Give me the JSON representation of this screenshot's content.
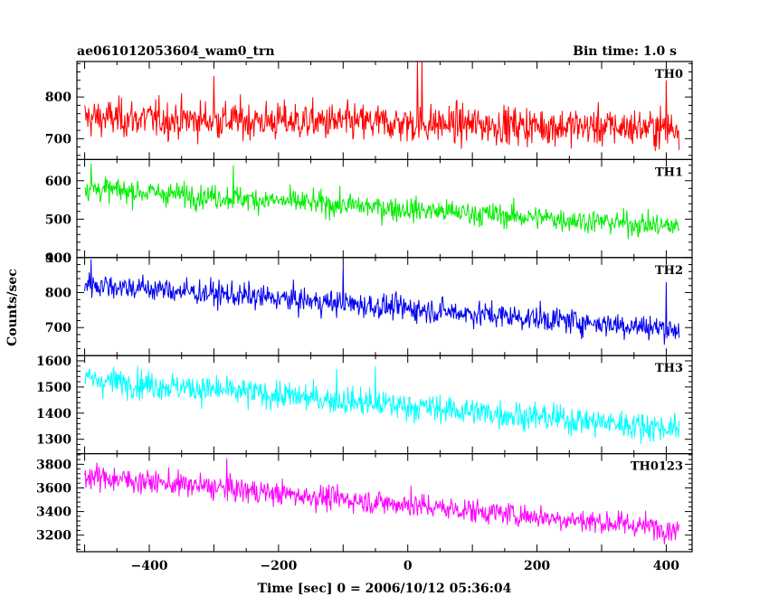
{
  "header": {
    "title": "ae061012053604_wam0_trn",
    "bin_time": "Bin time: 1.0 s"
  },
  "chart_data": {
    "type": "line",
    "xlabel": "Time [sec] 0 = 2006/10/12 05:36:04",
    "ylabel": "Counts/sec",
    "xlim": [
      -512,
      440
    ],
    "xticks": [
      -400,
      -200,
      0,
      200,
      400
    ],
    "x_start": -500,
    "x_end": 420,
    "x_step": 1,
    "panels": [
      {
        "name": "TH0",
        "color": "#ff0000",
        "ylim": [
          650,
          885
        ],
        "yticks": [
          700,
          800
        ],
        "trend_start": 750,
        "trend_end": 725,
        "scatter": 38,
        "spikes": [
          {
            "x": 15,
            "y": 885
          },
          {
            "x": 22,
            "y": 885
          },
          {
            "x": -300,
            "y": 850
          },
          {
            "x": 400,
            "y": 840
          }
        ]
      },
      {
        "name": "TH1",
        "color": "#00ee00",
        "ylim": [
          400,
          655
        ],
        "yticks": [
          400,
          500,
          600
        ],
        "trend_start": 580,
        "trend_end": 480,
        "scatter": 26,
        "spikes": [
          {
            "x": -270,
            "y": 640
          },
          {
            "x": -490,
            "y": 645
          }
        ]
      },
      {
        "name": "TH2",
        "color": "#0000ee",
        "ylim": [
          620,
          900
        ],
        "yticks": [
          700,
          800,
          900
        ],
        "trend_start": 825,
        "trend_end": 695,
        "scatter": 30,
        "spikes": [
          {
            "x": -100,
            "y": 880
          },
          {
            "x": -490,
            "y": 895
          },
          {
            "x": 400,
            "y": 830
          }
        ]
      },
      {
        "name": "TH3",
        "color": "#00ffff",
        "ylim": [
          1245,
          1620
        ],
        "yticks": [
          1300,
          1400,
          1500,
          1600
        ],
        "trend_start": 1530,
        "trend_end": 1340,
        "scatter": 45,
        "spikes": [
          {
            "x": -50,
            "y": 1580
          },
          {
            "x": -110,
            "y": 1570
          }
        ]
      },
      {
        "name": "TH0123",
        "color": "#ff00ff",
        "ylim": [
          3060,
          3890
        ],
        "yticks": [
          3200,
          3400,
          3600,
          3800
        ],
        "trend_start": 3700,
        "trend_end": 3250,
        "scatter": 85,
        "spikes": [
          {
            "x": 5,
            "y": 3620
          },
          {
            "x": -280,
            "y": 3850
          }
        ]
      }
    ]
  }
}
